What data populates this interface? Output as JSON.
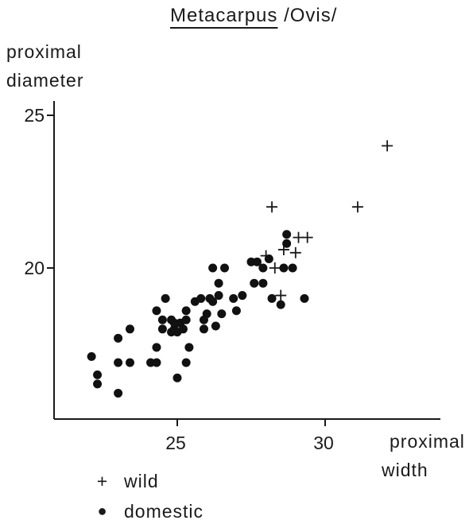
{
  "chart_data": {
    "type": "scatter",
    "title": "Metacarpus",
    "title_suffix": "/Ovis/",
    "ylabel_line1": "proximal",
    "ylabel_line2": "diameter",
    "xlabel_line1": "proximal",
    "xlabel_line2": "width",
    "xlim": [
      21.2,
      33.2
    ],
    "ylim": [
      15.2,
      26.2
    ],
    "x_ticks": [
      25,
      30
    ],
    "y_ticks": [
      20,
      25
    ],
    "grid": false,
    "legend_position": "bottom-left",
    "series": [
      {
        "name": "wild",
        "marker": "+",
        "points": [
          [
            32.1,
            24.0
          ],
          [
            31.1,
            22.0
          ],
          [
            28.2,
            22.0
          ],
          [
            29.1,
            21.0
          ],
          [
            29.4,
            21.0
          ],
          [
            28.6,
            20.6
          ],
          [
            29.0,
            20.5
          ],
          [
            28.0,
            20.4
          ],
          [
            28.3,
            20.0
          ],
          [
            28.5,
            19.1
          ]
        ]
      },
      {
        "name": "domestic",
        "marker": "●",
        "points": [
          [
            22.1,
            17.1
          ],
          [
            22.3,
            16.5
          ],
          [
            22.3,
            16.2
          ],
          [
            23.0,
            17.7
          ],
          [
            23.0,
            16.9
          ],
          [
            23.0,
            15.9
          ],
          [
            23.4,
            16.9
          ],
          [
            23.4,
            18.0
          ],
          [
            24.1,
            16.9
          ],
          [
            24.3,
            17.4
          ],
          [
            24.3,
            16.9
          ],
          [
            24.3,
            18.6
          ],
          [
            24.5,
            18.3
          ],
          [
            24.5,
            18.0
          ],
          [
            24.6,
            19.0
          ],
          [
            24.8,
            18.3
          ],
          [
            24.8,
            17.9
          ],
          [
            24.9,
            18.0
          ],
          [
            24.9,
            18.2
          ],
          [
            25.0,
            17.9
          ],
          [
            25.1,
            18.2
          ],
          [
            25.0,
            16.4
          ],
          [
            25.2,
            18.0
          ],
          [
            25.3,
            18.3
          ],
          [
            25.3,
            18.6
          ],
          [
            25.4,
            17.4
          ],
          [
            25.3,
            16.9
          ],
          [
            25.6,
            18.9
          ],
          [
            25.8,
            19.0
          ],
          [
            25.9,
            18.3
          ],
          [
            25.9,
            18.0
          ],
          [
            26.0,
            18.5
          ],
          [
            26.1,
            19.0
          ],
          [
            26.2,
            18.9
          ],
          [
            26.3,
            18.1
          ],
          [
            26.2,
            20.0
          ],
          [
            26.4,
            19.5
          ],
          [
            26.4,
            19.1
          ],
          [
            26.5,
            18.5
          ],
          [
            26.6,
            20.0
          ],
          [
            26.9,
            19.0
          ],
          [
            27.0,
            18.6
          ],
          [
            27.2,
            19.1
          ],
          [
            27.5,
            20.2
          ],
          [
            27.6,
            19.5
          ],
          [
            27.7,
            20.2
          ],
          [
            27.9,
            19.5
          ],
          [
            27.9,
            20.0
          ],
          [
            28.1,
            20.3
          ],
          [
            28.2,
            19.0
          ],
          [
            28.5,
            18.8
          ],
          [
            28.6,
            20.0
          ],
          [
            28.7,
            20.8
          ],
          [
            28.7,
            21.1
          ],
          [
            28.9,
            20.0
          ],
          [
            29.3,
            19.0
          ]
        ]
      }
    ]
  },
  "legend": {
    "wild_symbol": "+",
    "wild_label": "wild",
    "domestic_symbol": "●",
    "domestic_label": "domestic"
  }
}
